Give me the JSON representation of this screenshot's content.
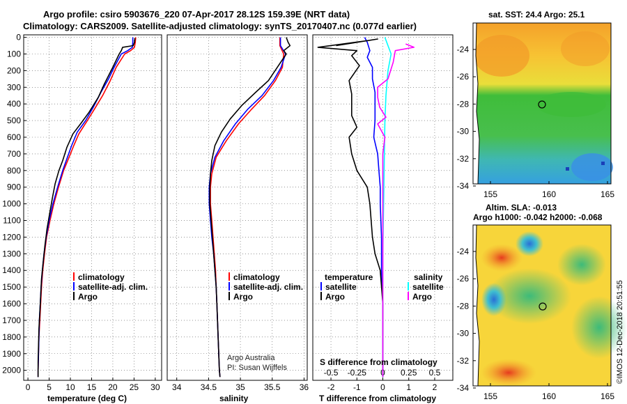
{
  "header": {
    "line1": "Argo profile: csiro 5903676_220 07-Apr-2017 28.12S 159.39E (NRT data)",
    "line2": "Climatology: CARS2009. Satellite-adjusted climatology: synTS_20170407.nc (0.077d earlier)"
  },
  "colors": {
    "climatology": "#ff0000",
    "satellite": "#0000ff",
    "argo": "#000000",
    "s_satellite": "#00ffff",
    "s_argo": "#ff00ff"
  },
  "pressure_ticks": [
    "0",
    "100",
    "200",
    "300",
    "400",
    "500",
    "600",
    "700",
    "800",
    "900",
    "1000",
    "1100",
    "1200",
    "1300",
    "1400",
    "1500",
    "1600",
    "1700",
    "1800",
    "1900",
    "2000"
  ],
  "temperature_panel": {
    "xlabel": "temperature (deg C)",
    "xticks": [
      "0",
      "5",
      "10",
      "15",
      "20",
      "25",
      "30"
    ],
    "legend": [
      "climatology",
      "satellite-adj. clim.",
      "Argo"
    ]
  },
  "salinity_panel": {
    "xlabel": "salinity",
    "xticks": [
      "34",
      "34.5",
      "35",
      "35.5",
      "36"
    ],
    "legend": [
      "climatology",
      "satellite-adj. clim.",
      "Argo"
    ],
    "credit1": "Argo Australia",
    "credit2": "PI: Susan Wijffels"
  },
  "difference_panel": {
    "xlabel": "T difference from climatology",
    "xticks": [
      "-2",
      "-1",
      "0",
      "1",
      "2"
    ],
    "top_xlabel": "S difference from climatology",
    "top_xticks": [
      "-0.5",
      "-0.25",
      "0",
      "0.25",
      "0.5"
    ],
    "legend_t_title": "temperature",
    "legend_s_title": "salinity",
    "legend_t": [
      "satellite",
      "Argo"
    ],
    "legend_s": [
      "satellite",
      "Argo"
    ]
  },
  "sst_map": {
    "title": "sat. SST: 24.4 Argo: 25.1",
    "yticks": [
      "-24",
      "-26",
      "-28",
      "-30",
      "-32",
      "-34"
    ],
    "xticks": [
      "155",
      "160",
      "165"
    ]
  },
  "sla_map": {
    "title1": "Altim. SLA: -0.013",
    "title2": "Argo h1000: -0.042 h2000: -0.068",
    "yticks": [
      "-24",
      "-26",
      "-28",
      "-30",
      "-32",
      "-34"
    ],
    "xticks": [
      "155",
      "160",
      "165"
    ]
  },
  "footer": {
    "stamp": "©IMOS 12-Dec-2018 20:51:55"
  },
  "chart_data": [
    {
      "type": "line",
      "x_quantity": "temperature (deg C)",
      "y_quantity": "pressure",
      "xlim": [
        -1,
        31.5
      ],
      "ylim": [
        2060,
        -15
      ],
      "series": [
        {
          "name": "climatology",
          "points": [
            [
              25.4,
              0
            ],
            [
              25.3,
              30
            ],
            [
              25.1,
              60
            ],
            [
              24.2,
              80
            ],
            [
              22.8,
              100
            ],
            [
              20.8,
              180
            ],
            [
              19.4,
              260
            ],
            [
              17.6,
              350
            ],
            [
              15.7,
              430
            ],
            [
              14.0,
              500
            ],
            [
              12.0,
              580
            ],
            [
              10.8,
              650
            ],
            [
              9.7,
              720
            ],
            [
              8.4,
              800
            ],
            [
              7.2,
              900
            ],
            [
              6.1,
              1000
            ],
            [
              5.2,
              1100
            ],
            [
              4.4,
              1200
            ],
            [
              3.9,
              1300
            ],
            [
              3.5,
              1400
            ],
            [
              3.2,
              1500
            ],
            [
              3.0,
              1600
            ],
            [
              2.8,
              1700
            ],
            [
              2.6,
              1800
            ],
            [
              2.5,
              1900
            ],
            [
              2.4,
              2000
            ],
            [
              2.4,
              2040
            ]
          ]
        },
        {
          "name": "satellite-adj. clim.",
          "points": [
            [
              24.7,
              0
            ],
            [
              24.7,
              30
            ],
            [
              24.6,
              60
            ],
            [
              23.5,
              80
            ],
            [
              22.0,
              100
            ],
            [
              20.3,
              180
            ],
            [
              19.0,
              250
            ],
            [
              17.2,
              330
            ],
            [
              15.4,
              420
            ],
            [
              13.6,
              500
            ],
            [
              11.6,
              570
            ],
            [
              10.3,
              650
            ],
            [
              9.3,
              720
            ],
            [
              8.2,
              800
            ],
            [
              7.0,
              900
            ],
            [
              5.9,
              1000
            ],
            [
              5.0,
              1100
            ],
            [
              4.3,
              1200
            ],
            [
              3.8,
              1300
            ],
            [
              3.4,
              1400
            ],
            [
              3.1,
              1500
            ],
            [
              2.9,
              1600
            ],
            [
              2.7,
              1700
            ],
            [
              2.6,
              1800
            ],
            [
              2.5,
              1900
            ],
            [
              2.4,
              2000
            ],
            [
              2.4,
              2040
            ]
          ]
        },
        {
          "name": "Argo",
          "points": [
            [
              25.2,
              5
            ],
            [
              25.1,
              30
            ],
            [
              24.8,
              50
            ],
            [
              22.3,
              60
            ],
            [
              22.0,
              80
            ],
            [
              21.5,
              100
            ],
            [
              20.0,
              180
            ],
            [
              18.0,
              280
            ],
            [
              16.6,
              360
            ],
            [
              14.4,
              450
            ],
            [
              12.4,
              520
            ],
            [
              10.6,
              580
            ],
            [
              9.2,
              660
            ],
            [
              8.2,
              740
            ],
            [
              7.3,
              800
            ],
            [
              6.4,
              880
            ],
            [
              5.8,
              960
            ],
            [
              5.1,
              1060
            ],
            [
              4.5,
              1150
            ],
            [
              4.0,
              1250
            ],
            [
              3.6,
              1350
            ],
            [
              3.2,
              1450
            ],
            [
              3.0,
              1550
            ],
            [
              2.8,
              1650
            ],
            [
              2.6,
              1750
            ],
            [
              2.5,
              1850
            ],
            [
              2.4,
              1950
            ],
            [
              2.4,
              2040
            ]
          ]
        }
      ]
    },
    {
      "type": "line",
      "x_quantity": "salinity",
      "y_quantity": "pressure",
      "xlim": [
        33.85,
        36.05
      ],
      "ylim": [
        2060,
        -15
      ],
      "series": [
        {
          "name": "climatology",
          "points": [
            [
              35.62,
              0
            ],
            [
              35.62,
              50
            ],
            [
              35.68,
              100
            ],
            [
              35.66,
              180
            ],
            [
              35.55,
              260
            ],
            [
              35.38,
              350
            ],
            [
              35.18,
              430
            ],
            [
              34.97,
              520
            ],
            [
              34.78,
              620
            ],
            [
              34.62,
              720
            ],
            [
              34.55,
              820
            ],
            [
              34.53,
              900
            ],
            [
              34.53,
              1000
            ],
            [
              34.55,
              1100
            ],
            [
              34.57,
              1200
            ],
            [
              34.59,
              1300
            ],
            [
              34.61,
              1400
            ],
            [
              34.62,
              1500
            ],
            [
              34.63,
              1600
            ],
            [
              34.64,
              1700
            ],
            [
              34.65,
              1800
            ],
            [
              34.66,
              1900
            ],
            [
              34.67,
              2000
            ],
            [
              34.68,
              2040
            ]
          ]
        },
        {
          "name": "satellite-adj. clim.",
          "points": [
            [
              35.63,
              0
            ],
            [
              35.63,
              50
            ],
            [
              35.71,
              100
            ],
            [
              35.64,
              180
            ],
            [
              35.52,
              260
            ],
            [
              35.34,
              350
            ],
            [
              35.12,
              430
            ],
            [
              34.92,
              520
            ],
            [
              34.74,
              620
            ],
            [
              34.6,
              720
            ],
            [
              34.53,
              820
            ],
            [
              34.51,
              900
            ],
            [
              34.51,
              1000
            ],
            [
              34.53,
              1100
            ],
            [
              34.55,
              1200
            ],
            [
              34.58,
              1300
            ],
            [
              34.6,
              1400
            ],
            [
              34.62,
              1500
            ],
            [
              34.63,
              1600
            ],
            [
              34.64,
              1700
            ],
            [
              34.65,
              1800
            ],
            [
              34.66,
              1900
            ],
            [
              34.67,
              2000
            ],
            [
              34.68,
              2040
            ]
          ]
        },
        {
          "name": "Argo",
          "points": [
            [
              35.72,
              0
            ],
            [
              35.75,
              30
            ],
            [
              35.78,
              50
            ],
            [
              35.68,
              80
            ],
            [
              35.72,
              100
            ],
            [
              35.58,
              180
            ],
            [
              35.44,
              260
            ],
            [
              35.24,
              330
            ],
            [
              35.02,
              410
            ],
            [
              34.84,
              490
            ],
            [
              34.7,
              570
            ],
            [
              34.6,
              650
            ],
            [
              34.55,
              740
            ],
            [
              34.53,
              820
            ],
            [
              34.52,
              900
            ],
            [
              34.52,
              1000
            ],
            [
              34.54,
              1100
            ],
            [
              34.56,
              1200
            ],
            [
              34.58,
              1300
            ],
            [
              34.6,
              1400
            ],
            [
              34.62,
              1500
            ],
            [
              34.63,
              1600
            ],
            [
              34.64,
              1700
            ],
            [
              34.65,
              1800
            ],
            [
              34.66,
              1900
            ],
            [
              34.67,
              2000
            ],
            [
              34.68,
              2040
            ]
          ]
        }
      ]
    },
    {
      "type": "line",
      "x_quantity": "T difference from climatology",
      "secondary_x_quantity": "S difference from climatology",
      "y_quantity": "pressure",
      "xlim": [
        -2.7,
        2.7
      ],
      "ylim": [
        2060,
        -15
      ],
      "secondary_xlim": [
        -0.675,
        0.675
      ],
      "series": [
        {
          "name": "temperature satellite",
          "axis": "T",
          "points": [
            [
              -0.7,
              0
            ],
            [
              -0.6,
              30
            ],
            [
              -0.5,
              80
            ],
            [
              -0.6,
              120
            ],
            [
              -0.4,
              180
            ],
            [
              -0.4,
              250
            ],
            [
              -0.3,
              330
            ],
            [
              -0.3,
              420
            ],
            [
              -0.3,
              500
            ],
            [
              -0.35,
              600
            ],
            [
              -0.2,
              700
            ],
            [
              -0.15,
              800
            ],
            [
              -0.1,
              900
            ],
            [
              -0.1,
              1000
            ],
            [
              -0.05,
              1200
            ],
            [
              -0.05,
              1400
            ],
            [
              0,
              1600
            ],
            [
              0,
              1800
            ],
            [
              0,
              2040
            ]
          ]
        },
        {
          "name": "temperature Argo",
          "axis": "T",
          "points": [
            [
              -1.8,
              50
            ],
            [
              -0.2,
              10
            ],
            [
              -0.6,
              20
            ],
            [
              -2.5,
              60
            ],
            [
              -1.0,
              80
            ],
            [
              -1.2,
              110
            ],
            [
              -0.9,
              170
            ],
            [
              -1.3,
              260
            ],
            [
              -1.2,
              340
            ],
            [
              -1.2,
              470
            ],
            [
              -1.0,
              540
            ],
            [
              -1.3,
              600
            ],
            [
              -1.2,
              700
            ],
            [
              -1.0,
              800
            ],
            [
              -0.6,
              900
            ],
            [
              -0.5,
              1000
            ],
            [
              -0.4,
              1200
            ],
            [
              -0.3,
              1300
            ],
            [
              -0.1,
              1400
            ],
            [
              0,
              1600
            ],
            [
              0,
              1800
            ],
            [
              0,
              2040
            ]
          ]
        },
        {
          "name": "salinity satellite",
          "axis": "S",
          "points": [
            [
              0.02,
              0
            ],
            [
              0.05,
              50
            ],
            [
              0.08,
              100
            ],
            [
              0.05,
              200
            ],
            [
              0.03,
              350
            ],
            [
              0.02,
              500
            ],
            [
              0.015,
              700
            ],
            [
              0.01,
              900
            ],
            [
              0.005,
              1100
            ],
            [
              0,
              1300
            ],
            [
              0,
              1500
            ],
            [
              0,
              1700
            ],
            [
              0,
              2040
            ]
          ]
        },
        {
          "name": "salinity Argo",
          "axis": "S",
          "points": [
            [
              0.22,
              40
            ],
            [
              0.3,
              60
            ],
            [
              0.12,
              80
            ],
            [
              0.1,
              150
            ],
            [
              0.05,
              250
            ],
            [
              -0.05,
              300
            ],
            [
              -0.05,
              360
            ],
            [
              -0.03,
              420
            ],
            [
              0.03,
              480
            ],
            [
              -0.05,
              520
            ],
            [
              0.02,
              600
            ],
            [
              0,
              700
            ],
            [
              0,
              2040
            ]
          ]
        }
      ]
    }
  ]
}
